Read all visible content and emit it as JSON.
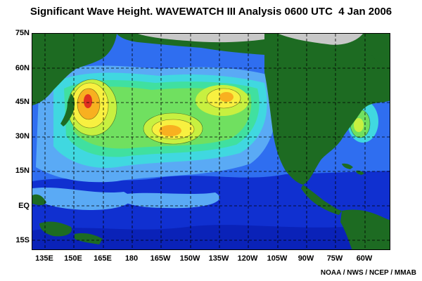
{
  "title": "Significant Wave Height. WAVEWATCH III Analysis 0600 UTC  4 Jan 2006",
  "credit": "NOAA / NWS / NCEP / MMAB",
  "latitude_labels": [
    "75N",
    "60N",
    "45N",
    "30N",
    "15N",
    "EQ",
    "15S"
  ],
  "longitude_labels": [
    "135E",
    "150E",
    "165E",
    "180",
    "165W",
    "150W",
    "135W",
    "120W",
    "105W",
    "90W",
    "75W",
    "60W"
  ],
  "colors": {
    "land": "#1d6b22",
    "ice": "#c8c8c8",
    "deep_blue": "#1030d0",
    "blue": "#2f6ef0",
    "light_blue": "#5aaaf5",
    "cyan": "#40d8e0",
    "aqua_green": "#40e0a0",
    "green": "#70e060",
    "yellow_green": "#c8f040",
    "yellow": "#f8f040",
    "orange": "#f8b020",
    "red": "#e03020"
  }
}
